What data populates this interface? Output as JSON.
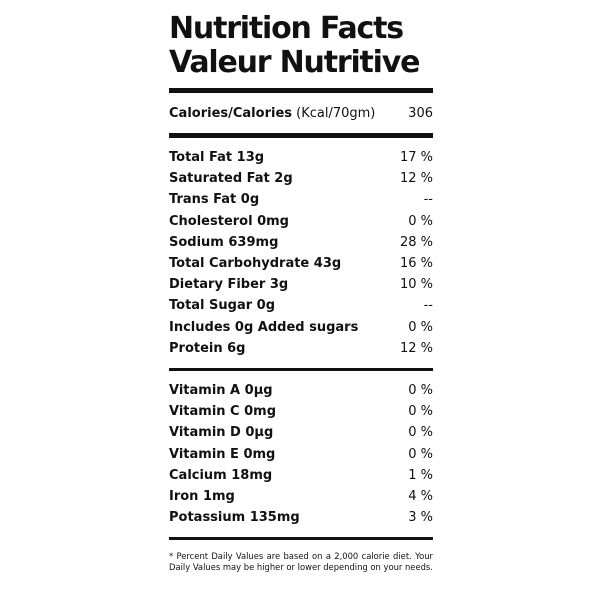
{
  "title": {
    "line1": "Nutrition Facts",
    "line2": "Valeur Nutritive"
  },
  "calories": {
    "label": "Calories/Calories",
    "unit": "(Kcal/70gm)",
    "value": "306"
  },
  "nutrients": [
    {
      "label": "Total Fat 13g",
      "dv": "17 %"
    },
    {
      "label": "Saturated Fat 2g",
      "dv": "12 %"
    },
    {
      "label": "Trans Fat 0g",
      "dv": "--"
    },
    {
      "label": "Cholesterol 0mg",
      "dv": "0 %"
    },
    {
      "label": "Sodium 639mg",
      "dv": "28 %"
    },
    {
      "label": "Total Carbohydrate 43g",
      "dv": "16 %"
    },
    {
      "label": "Dietary Fiber 3g",
      "dv": "10 %"
    },
    {
      "label": "Total Sugar 0g",
      "dv": "--"
    },
    {
      "label": "Includes 0g Added sugars",
      "dv": "0 %"
    },
    {
      "label": "Protein 6g",
      "dv": "12 %"
    }
  ],
  "vitamins": [
    {
      "label": "Vitamin A 0µg",
      "dv": "0 %"
    },
    {
      "label": "Vitamin C 0mg",
      "dv": "0 %"
    },
    {
      "label": "Vitamin D 0µg",
      "dv": "0 %"
    },
    {
      "label": "Vitamin E 0mg",
      "dv": "0 %"
    },
    {
      "label": "Calcium 18mg",
      "dv": "1 %"
    },
    {
      "label": "Iron 1mg",
      "dv": "4 %"
    },
    {
      "label": "Potassium 135mg",
      "dv": "3 %"
    }
  ],
  "footnote": "* Percent Daily Values are based on a 2,000 calorie diet. Your Daily Values may be higher or lower depending on your needs.",
  "colors": {
    "ink": "#111111",
    "background": "#ffffff"
  }
}
